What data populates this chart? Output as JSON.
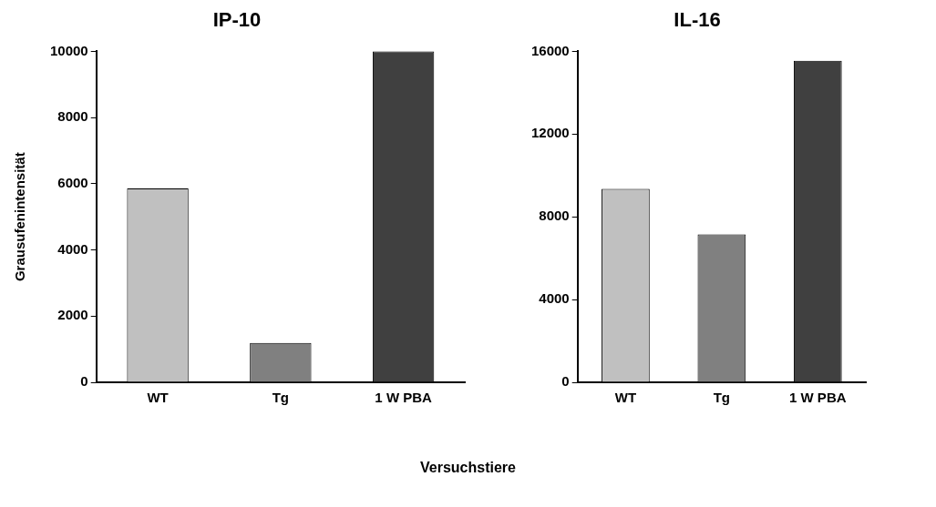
{
  "chart_data": [
    {
      "type": "bar",
      "title": "IP-10",
      "ylabel": "Grausufenintensität",
      "xlabel": "Versuchstiere",
      "categories": [
        "WT",
        "Tg",
        "1 W PBA"
      ],
      "values": [
        5860,
        1190,
        10000
      ],
      "colors": [
        "#c0c0c0",
        "#808080",
        "#404040"
      ],
      "ylim": [
        0,
        10000
      ],
      "yticks": [
        0,
        2000,
        4000,
        6000,
        8000,
        10000
      ],
      "grid": false,
      "legend": false
    },
    {
      "type": "bar",
      "title": "IL-16",
      "categories": [
        "WT",
        "Tg",
        "1 W PBA"
      ],
      "values": [
        9350,
        7150,
        15550
      ],
      "colors": [
        "#c0c0c0",
        "#808080",
        "#404040"
      ],
      "ylim": [
        0,
        16000
      ],
      "yticks": [
        0,
        4000,
        8000,
        12000,
        16000
      ],
      "grid": false,
      "legend": false
    }
  ]
}
